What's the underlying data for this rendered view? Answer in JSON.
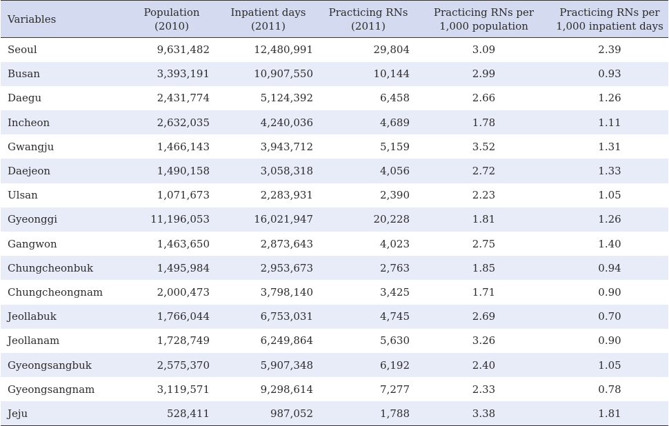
{
  "table": {
    "headers": [
      [
        "Variables"
      ],
      [
        "Population",
        "(2010)"
      ],
      [
        "Inpatient days",
        "(2011)"
      ],
      [
        "Practicing RNs",
        "(2011)"
      ],
      [
        "Practicing RNs per",
        "1,000 population"
      ],
      [
        "Practicing RNs per",
        "1,000 inpatient days"
      ]
    ],
    "rows": [
      [
        "Seoul",
        "9,631,482",
        "12,480,991",
        "29,804",
        "3.09",
        "2.39"
      ],
      [
        "Busan",
        "3,393,191",
        "10,907,550",
        "10,144",
        "2.99",
        "0.93"
      ],
      [
        "Daegu",
        "2,431,774",
        "5,124,392",
        "6,458",
        "2.66",
        "1.26"
      ],
      [
        "Incheon",
        "2,632,035",
        "4,240,036",
        "4,689",
        "1.78",
        "1.11"
      ],
      [
        "Gwangju",
        "1,466,143",
        "3,943,712",
        "5,159",
        "3.52",
        "1.31"
      ],
      [
        "Daejeon",
        "1,490,158",
        "3,058,318",
        "4,056",
        "2.72",
        "1.33"
      ],
      [
        "Ulsan",
        "1,071,673",
        "2,283,931",
        "2,390",
        "2.23",
        "1.05"
      ],
      [
        "Gyeonggi",
        "11,196,053",
        "16,021,947",
        "20,228",
        "1.81",
        "1.26"
      ],
      [
        "Gangwon",
        "1,463,650",
        "2,873,643",
        "4,023",
        "2.75",
        "1.40"
      ],
      [
        "Chungcheonbuk",
        "1,495,984",
        "2,953,673",
        "2,763",
        "1.85",
        "0.94"
      ],
      [
        "Chungcheongnam",
        "2,000,473",
        "3,798,140",
        "3,425",
        "1.71",
        "0.90"
      ],
      [
        "Jeollabuk",
        "1,766,044",
        "6,753,031",
        "4,745",
        "2.69",
        "0.70"
      ],
      [
        "Jeollanam",
        "1,728,749",
        "6,249,864",
        "5,630",
        "3.26",
        "0.90"
      ],
      [
        "Gyeongsangbuk",
        "2,575,370",
        "5,907,348",
        "6,192",
        "2.40",
        "1.05"
      ],
      [
        "Gyeongsangnam",
        "3,119,571",
        "9,298,614",
        "7,277",
        "2.33",
        "0.78"
      ],
      [
        "Jeju",
        "528,411",
        "987,052",
        "1,788",
        "3.38",
        "1.81"
      ]
    ]
  },
  "colors": {
    "header_bg": "#d4daf0",
    "stripe_bg": "#e8ebf8",
    "text": "#2b2b2b",
    "rule": "#333333"
  }
}
